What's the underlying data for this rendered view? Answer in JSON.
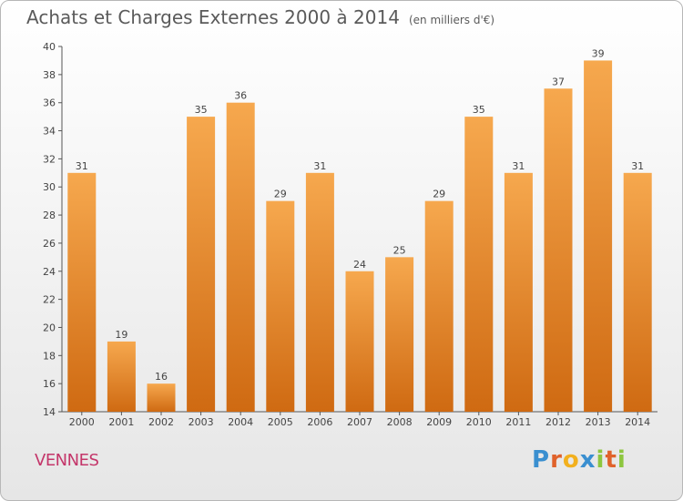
{
  "title": "Achats et Charges Externes 2000 à 2014",
  "subtitle": "(en milliers d'€)",
  "place": "VENNES",
  "logo": {
    "letters": [
      {
        "char": "P",
        "color": "#3a8fd0"
      },
      {
        "char": "r",
        "color": "#e0622b"
      },
      {
        "char": "o",
        "color": "#f2b01e"
      },
      {
        "char": "x",
        "color": "#3a8fd0"
      },
      {
        "char": "i",
        "color": "#8dc63f"
      },
      {
        "char": "t",
        "color": "#e0622b"
      },
      {
        "char": "i",
        "color": "#8dc63f"
      }
    ]
  },
  "colors": {
    "bar_light": "#f6a84e",
    "bar_dark": "#cf6a12",
    "axis": "#555555",
    "grid": "#d8d8d8"
  },
  "chart_data": {
    "type": "bar",
    "title": "Achats et Charges Externes 2000 à 2014",
    "subtitle": "(en milliers d'€)",
    "categories": [
      "2000",
      "2001",
      "2002",
      "2003",
      "2004",
      "2005",
      "2006",
      "2007",
      "2008",
      "2009",
      "2010",
      "2011",
      "2012",
      "2013",
      "2014"
    ],
    "values": [
      31,
      19,
      16,
      35,
      36,
      29,
      31,
      24,
      25,
      29,
      35,
      31,
      37,
      39,
      31
    ],
    "ylim": [
      14,
      40
    ],
    "yticks": [
      14,
      16,
      18,
      20,
      22,
      24,
      26,
      28,
      30,
      32,
      34,
      36,
      38,
      40
    ],
    "xlabel": "",
    "ylabel": "",
    "grid": false,
    "legend": "none"
  }
}
